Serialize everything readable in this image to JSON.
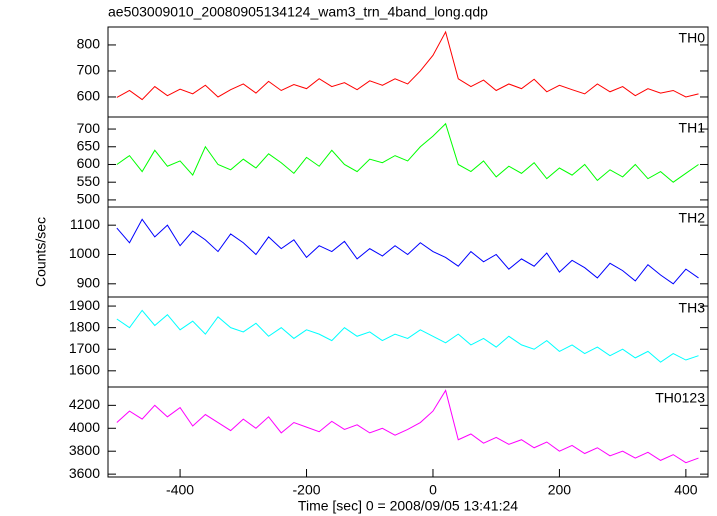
{
  "chart_data": [
    {
      "type": "line",
      "title": "ae503009010_20080905134124_wam3_trn_4band_long.qdp",
      "x": [
        -500,
        -480,
        -460,
        -440,
        -420,
        -400,
        -380,
        -360,
        -340,
        -320,
        -300,
        -280,
        -260,
        -240,
        -220,
        -200,
        -180,
        -160,
        -140,
        -120,
        -100,
        -80,
        -60,
        -40,
        -20,
        0,
        20,
        40,
        60,
        80,
        100,
        120,
        140,
        160,
        180,
        200,
        220,
        240,
        260,
        280,
        300,
        320,
        340,
        360,
        380,
        400,
        420
      ],
      "series": [
        {
          "name": "TH0",
          "color": "#ff0000",
          "values": [
            598,
            625,
            590,
            640,
            605,
            630,
            612,
            645,
            600,
            628,
            650,
            615,
            660,
            625,
            648,
            632,
            670,
            640,
            655,
            628,
            662,
            645,
            670,
            650,
            700,
            760,
            850,
            670,
            640,
            665,
            625,
            650,
            632,
            668,
            620,
            645,
            628,
            612,
            650,
            620,
            640,
            605,
            632,
            615,
            625,
            600,
            612
          ]
        }
      ],
      "xlim": [
        -514,
        435
      ],
      "ylim": [
        523,
        869
      ],
      "yticks": [
        600,
        700,
        800
      ]
    },
    {
      "type": "line",
      "x": [
        -500,
        -480,
        -460,
        -440,
        -420,
        -400,
        -380,
        -360,
        -340,
        -320,
        -300,
        -280,
        -260,
        -240,
        -220,
        -200,
        -180,
        -160,
        -140,
        -120,
        -100,
        -80,
        -60,
        -40,
        -20,
        0,
        20,
        40,
        60,
        80,
        100,
        120,
        140,
        160,
        180,
        200,
        220,
        240,
        260,
        280,
        300,
        320,
        340,
        360,
        380,
        400,
        420
      ],
      "series": [
        {
          "name": "TH1",
          "color": "#00ff00",
          "values": [
            600,
            625,
            580,
            640,
            595,
            610,
            570,
            650,
            600,
            585,
            615,
            590,
            630,
            605,
            575,
            620,
            595,
            640,
            600,
            580,
            615,
            605,
            625,
            610,
            650,
            680,
            715,
            600,
            580,
            610,
            565,
            595,
            575,
            605,
            560,
            590,
            570,
            600,
            555,
            585,
            565,
            600,
            560,
            580,
            550,
            575,
            600
          ]
        }
      ],
      "xlim": [
        -514,
        435
      ],
      "ylim": [
        480,
        734
      ],
      "yticks": [
        500,
        550,
        600,
        650,
        700
      ]
    },
    {
      "type": "line",
      "ylabel": "Counts/sec",
      "x": [
        -500,
        -480,
        -460,
        -440,
        -420,
        -400,
        -380,
        -360,
        -340,
        -320,
        -300,
        -280,
        -260,
        -240,
        -220,
        -200,
        -180,
        -160,
        -140,
        -120,
        -100,
        -80,
        -60,
        -40,
        -20,
        0,
        20,
        40,
        60,
        80,
        100,
        120,
        140,
        160,
        180,
        200,
        220,
        240,
        260,
        280,
        300,
        320,
        340,
        360,
        380,
        400,
        420
      ],
      "series": [
        {
          "name": "TH2",
          "color": "#0000ff",
          "values": [
            1090,
            1040,
            1120,
            1060,
            1100,
            1030,
            1080,
            1050,
            1010,
            1070,
            1040,
            1000,
            1060,
            1020,
            1050,
            990,
            1030,
            1010,
            1045,
            985,
            1020,
            995,
            1030,
            1000,
            1040,
            1010,
            990,
            960,
            1010,
            975,
            1000,
            950,
            985,
            960,
            1005,
            940,
            980,
            955,
            920,
            970,
            945,
            910,
            965,
            930,
            900,
            950,
            920
          ]
        }
      ],
      "xlim": [
        -514,
        435
      ],
      "ylim": [
        855,
        1162
      ],
      "yticks": [
        900,
        1000,
        1100
      ]
    },
    {
      "type": "line",
      "x": [
        -500,
        -480,
        -460,
        -440,
        -420,
        -400,
        -380,
        -360,
        -340,
        -320,
        -300,
        -280,
        -260,
        -240,
        -220,
        -200,
        -180,
        -160,
        -140,
        -120,
        -100,
        -80,
        -60,
        -40,
        -20,
        0,
        20,
        40,
        60,
        80,
        100,
        120,
        140,
        160,
        180,
        200,
        220,
        240,
        260,
        280,
        300,
        320,
        340,
        360,
        380,
        400,
        420
      ],
      "series": [
        {
          "name": "TH3",
          "color": "#00ffff",
          "values": [
            1840,
            1800,
            1880,
            1810,
            1860,
            1790,
            1830,
            1770,
            1850,
            1800,
            1780,
            1820,
            1760,
            1800,
            1750,
            1790,
            1770,
            1740,
            1800,
            1760,
            1780,
            1740,
            1770,
            1750,
            1790,
            1760,
            1730,
            1770,
            1720,
            1750,
            1710,
            1760,
            1720,
            1700,
            1740,
            1690,
            1720,
            1680,
            1710,
            1670,
            1700,
            1660,
            1690,
            1640,
            1680,
            1650,
            1670
          ]
        }
      ],
      "xlim": [
        -514,
        435
      ],
      "ylim": [
        1525,
        1942
      ],
      "yticks": [
        1600,
        1700,
        1800,
        1900
      ]
    },
    {
      "type": "line",
      "xlabel": "Time [sec] 0 = 2008/09/05 13:41:24",
      "x": [
        -500,
        -480,
        -460,
        -440,
        -420,
        -400,
        -380,
        -360,
        -340,
        -320,
        -300,
        -280,
        -260,
        -240,
        -220,
        -200,
        -180,
        -160,
        -140,
        -120,
        -100,
        -80,
        -60,
        -40,
        -20,
        0,
        20,
        40,
        60,
        80,
        100,
        120,
        140,
        160,
        180,
        200,
        220,
        240,
        260,
        280,
        300,
        320,
        340,
        360,
        380,
        400,
        420
      ],
      "series": [
        {
          "name": "TH0123",
          "color": "#ff00ff",
          "values": [
            4050,
            4150,
            4080,
            4200,
            4100,
            4180,
            4020,
            4120,
            4050,
            3980,
            4080,
            4000,
            4100,
            3960,
            4050,
            4010,
            3970,
            4060,
            3990,
            4030,
            3960,
            4000,
            3940,
            3990,
            4050,
            4150,
            4330,
            3900,
            3950,
            3870,
            3920,
            3860,
            3900,
            3830,
            3880,
            3800,
            3850,
            3780,
            3830,
            3760,
            3800,
            3740,
            3790,
            3720,
            3770,
            3700,
            3740
          ]
        }
      ],
      "xlim": [
        -514,
        435
      ],
      "ylim": [
        3575,
        4360
      ],
      "yticks": [
        3600,
        3800,
        4000,
        4200
      ],
      "xticks": [
        -400,
        -200,
        0,
        200,
        400
      ]
    }
  ]
}
